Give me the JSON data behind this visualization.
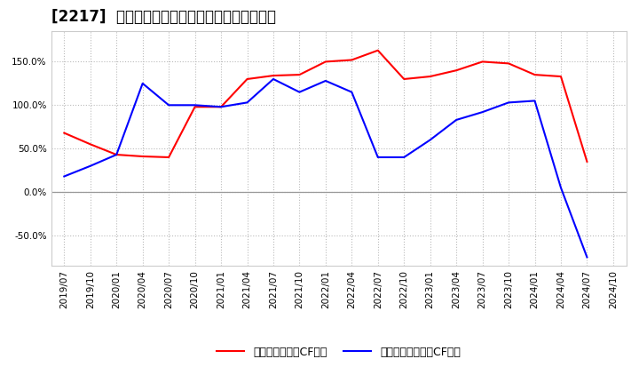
{
  "title": "[2217]  有利子負債キャッシュフロー比率の推移",
  "x_labels": [
    "2019/07",
    "2019/10",
    "2020/01",
    "2020/04",
    "2020/07",
    "2020/10",
    "2021/01",
    "2021/04",
    "2021/07",
    "2021/10",
    "2022/01",
    "2022/04",
    "2022/07",
    "2022/10",
    "2023/01",
    "2023/04",
    "2023/07",
    "2023/10",
    "2024/01",
    "2024/04",
    "2024/07",
    "2024/10"
  ],
  "red_values": [
    68,
    55,
    43,
    41,
    40,
    98,
    98,
    130,
    134,
    135,
    150,
    152,
    163,
    130,
    133,
    140,
    150,
    148,
    135,
    133,
    35,
    null
  ],
  "blue_values": [
    18,
    30,
    43,
    125,
    100,
    100,
    98,
    103,
    130,
    115,
    128,
    115,
    40,
    40,
    60,
    83,
    92,
    103,
    105,
    5,
    -75,
    null
  ],
  "ylim_min": -85,
  "ylim_max": 185,
  "yticks": [
    -50,
    0,
    50,
    100,
    150
  ],
  "red_color": "#ff0000",
  "blue_color": "#0000ff",
  "bg_color": "#ffffff",
  "plot_bg_color": "#ffffff",
  "grid_color": "#bbbbbb",
  "legend_red": "有利子負債営業CF比率",
  "legend_blue": "有利子負債フリーCF比率",
  "title_fontsize": 12,
  "axis_fontsize": 7.5,
  "legend_fontsize": 9
}
